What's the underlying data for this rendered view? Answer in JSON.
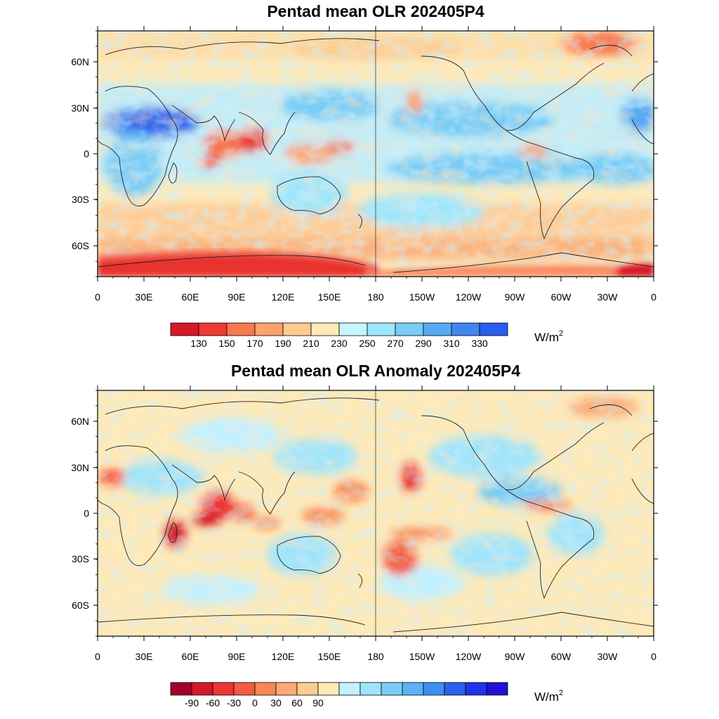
{
  "panels": [
    {
      "id": "mean",
      "title": "Pentad mean OLR 202405P4",
      "lat_ticks": [
        "60N",
        "30N",
        "0",
        "30S",
        "60S"
      ],
      "lon_ticks": [
        "0",
        "30E",
        "60E",
        "90E",
        "120E",
        "150E",
        "180",
        "150W",
        "120W",
        "90W",
        "60W",
        "30W",
        "0"
      ],
      "colorbar": {
        "labels": [
          "130",
          "150",
          "170",
          "190",
          "210",
          "230",
          "250",
          "270",
          "290",
          "310",
          "330"
        ],
        "colors": [
          "#d7182a",
          "#f03b32",
          "#f8784f",
          "#fca36b",
          "#fdcb8f",
          "#feeab8",
          "#c6f5ff",
          "#9fe6fc",
          "#78ccf7",
          "#58a9f4",
          "#3f86f1",
          "#2a5cee"
        ],
        "unit": "W/m",
        "unit_sup": "2"
      }
    },
    {
      "id": "anomaly",
      "title": "Pentad mean OLR Anomaly 202405P4",
      "lat_ticks": [
        "60N",
        "30N",
        "0",
        "30S",
        "60S"
      ],
      "lon_ticks": [
        "0",
        "30E",
        "60E",
        "90E",
        "120E",
        "150E",
        "180",
        "150W",
        "120W",
        "90W",
        "60W",
        "30W",
        "0"
      ],
      "colorbar": {
        "labels": [
          "-90",
          "-60",
          "-30",
          "0",
          "30",
          "60",
          "90"
        ],
        "colors": [
          "#a50026",
          "#d21a2c",
          "#ee3434",
          "#f55a40",
          "#f98656",
          "#fcaa74",
          "#fdcc91",
          "#feeab7",
          "#c2f1ff",
          "#9fe4fb",
          "#7ccdf6",
          "#5bb2f4",
          "#3e8ff1",
          "#2a62ee",
          "#1d34e9",
          "#2410d8"
        ],
        "unit": "W/m",
        "unit_sup": "2"
      }
    }
  ]
}
